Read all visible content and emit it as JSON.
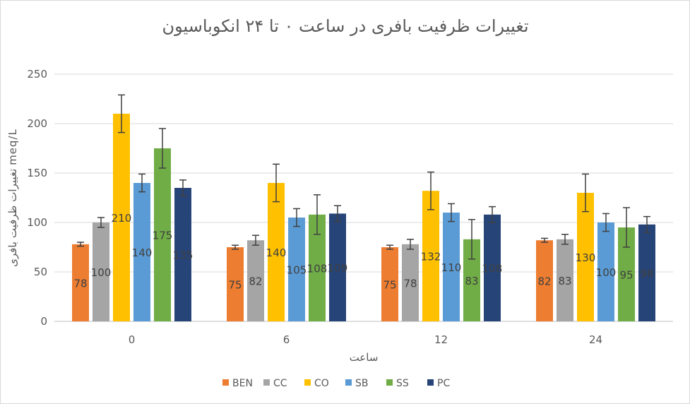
{
  "chart_data": {
    "type": "bar",
    "title": "تغییرات ظرفیت بافری در ساعت ۰ تا ۲۴ انکوباسیون",
    "xlabel": "ساعت",
    "ylabel": "تغییرات ظرفیت بافری meq/L",
    "categories": [
      "0",
      "6",
      "12",
      "24"
    ],
    "ylim": [
      0,
      250
    ],
    "yticks": [
      0,
      50,
      100,
      150,
      200,
      250
    ],
    "grid": true,
    "legend": "bottom",
    "series": [
      {
        "name": "BEN",
        "color": "#ED7D31",
        "values": [
          78,
          75,
          75,
          82
        ],
        "errors": [
          2,
          2,
          2,
          2
        ]
      },
      {
        "name": "CC",
        "color": "#A5A5A5",
        "values": [
          100,
          82,
          78,
          83
        ],
        "errors": [
          5,
          5,
          5,
          5
        ]
      },
      {
        "name": "CO",
        "color": "#FFC000",
        "values": [
          210,
          140,
          132,
          130
        ],
        "errors": [
          19,
          19,
          19,
          19
        ]
      },
      {
        "name": "SB",
        "color": "#5B9BD5",
        "values": [
          140,
          105,
          110,
          100
        ],
        "errors": [
          9,
          9,
          9,
          9
        ]
      },
      {
        "name": "SS",
        "color": "#70AD47",
        "values": [
          175,
          108,
          83,
          95
        ],
        "errors": [
          20,
          20,
          20,
          20
        ]
      },
      {
        "name": "PC",
        "color": "#264478",
        "values": [
          135,
          109,
          108,
          98
        ],
        "errors": [
          8,
          8,
          8,
          8
        ]
      }
    ]
  }
}
